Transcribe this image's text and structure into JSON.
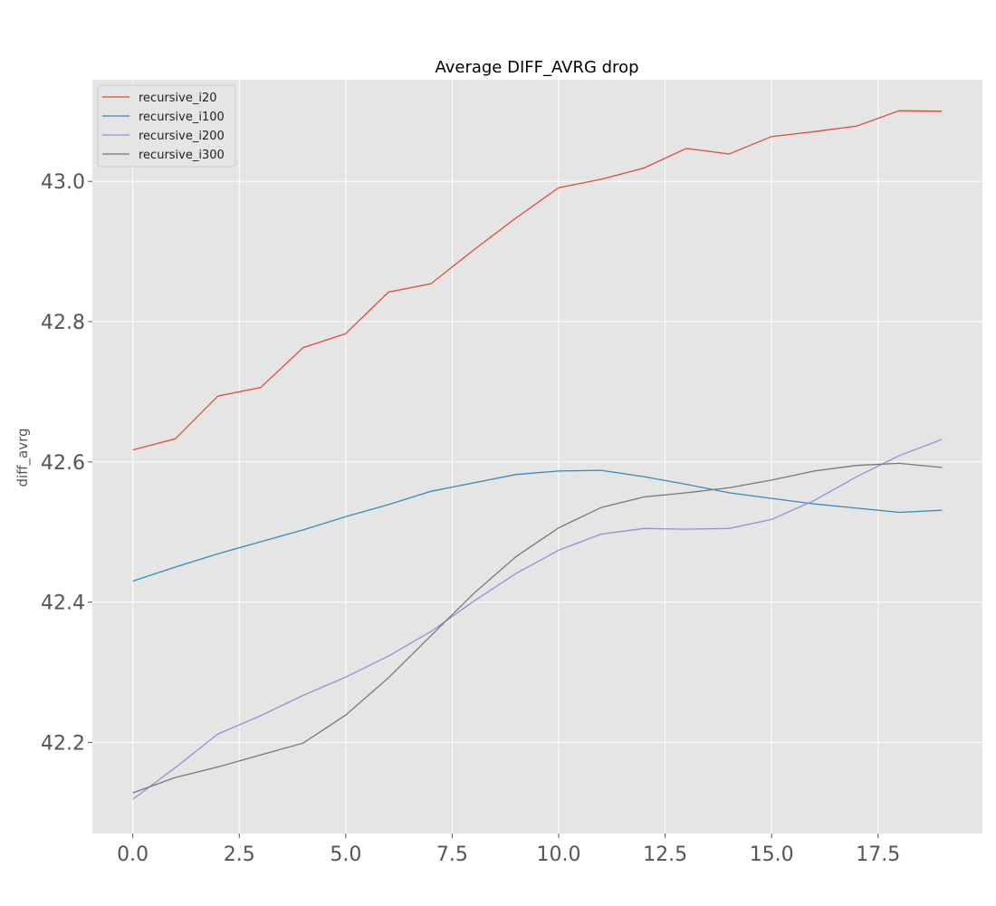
{
  "chart_data": {
    "type": "line",
    "title": "Average DIFF_AVRG drop",
    "xlabel": "",
    "ylabel": "diff_avrg",
    "xlim": [
      -0.95,
      19.95
    ],
    "ylim": [
      42.07,
      43.145
    ],
    "x_ticks": [
      0,
      2.5,
      5,
      7.5,
      10,
      12.5,
      15,
      17.5
    ],
    "x_tick_labels": [
      "0.0",
      "2.5",
      "5.0",
      "7.5",
      "10.0",
      "12.5",
      "15.0",
      "17.5"
    ],
    "y_ticks": [
      42.2,
      42.4,
      42.6,
      42.8,
      43.0
    ],
    "y_tick_labels": [
      "42.2",
      "42.4",
      "42.6",
      "42.8",
      "43.0"
    ],
    "grid": true,
    "legend_position": "top-left",
    "x": [
      0,
      1,
      2,
      3,
      4,
      5,
      6,
      7,
      8,
      9,
      10,
      11,
      12,
      13,
      14,
      15,
      16,
      17,
      18,
      19
    ],
    "series": [
      {
        "name": "recursive_i20",
        "color": "#e24a33",
        "values": [
          42.617,
          42.633,
          42.694,
          42.706,
          42.763,
          42.783,
          42.842,
          42.854,
          42.902,
          42.948,
          42.991,
          43.003,
          43.019,
          43.047,
          43.039,
          43.064,
          43.071,
          43.079,
          43.101,
          43.1
        ]
      },
      {
        "name": "recursive_i100",
        "color": "#348abd",
        "values": [
          42.43,
          42.45,
          42.469,
          42.486,
          42.503,
          42.522,
          42.539,
          42.558,
          42.57,
          42.582,
          42.587,
          42.588,
          42.579,
          42.568,
          42.556,
          42.548,
          42.54,
          42.534,
          42.528,
          42.531
        ]
      },
      {
        "name": "recursive_i200",
        "color": "#988ed5",
        "values": [
          42.119,
          42.164,
          42.212,
          42.238,
          42.267,
          42.293,
          42.323,
          42.358,
          42.401,
          42.441,
          42.474,
          42.497,
          42.505,
          42.504,
          42.505,
          42.518,
          42.545,
          42.579,
          42.609,
          42.632
        ]
      },
      {
        "name": "recursive_i300",
        "color": "#777777",
        "values": [
          42.128,
          42.15,
          42.165,
          42.182,
          42.199,
          42.239,
          42.292,
          42.352,
          42.412,
          42.465,
          42.506,
          42.535,
          42.55,
          42.556,
          42.563,
          42.574,
          42.587,
          42.595,
          42.598,
          42.592
        ]
      }
    ]
  }
}
